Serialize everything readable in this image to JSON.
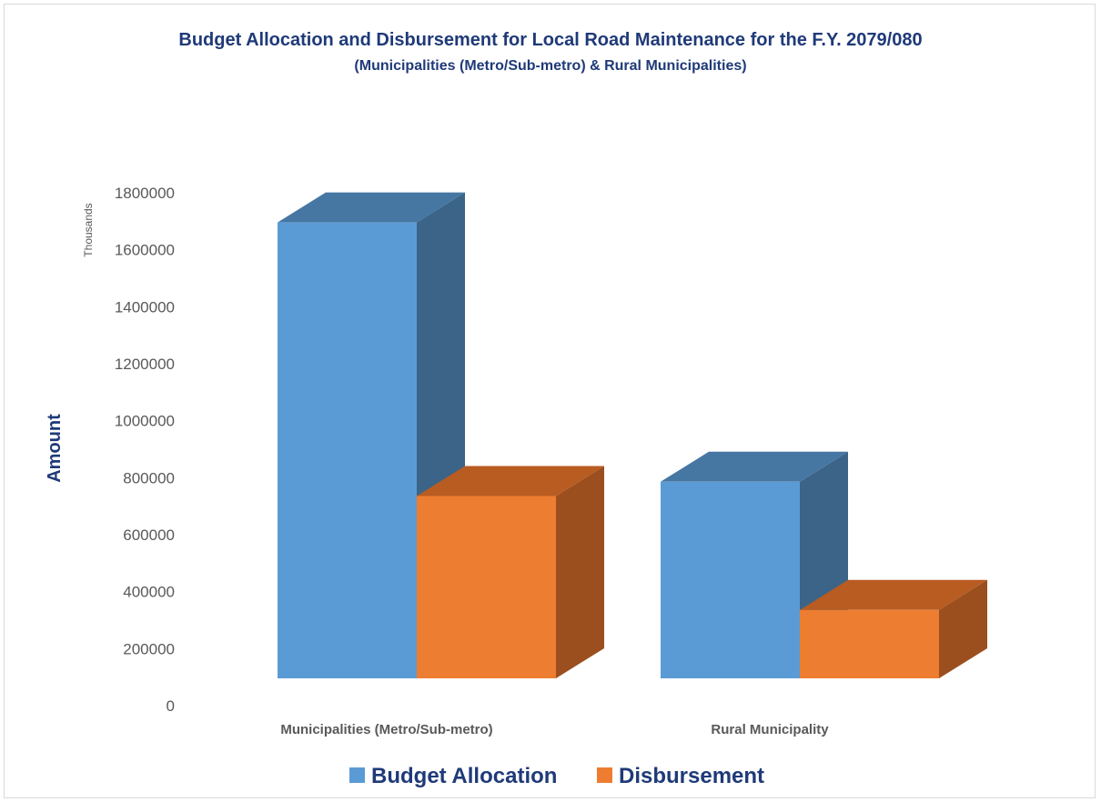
{
  "chart_data": {
    "type": "bar",
    "style": "3d-column",
    "title": "Budget Allocation and Disbursement for Local Road Maintenance for the F.Y. 2079/080",
    "subtitle": "(Municipalities (Metro/Sub-metro) & Rural Municipalities)",
    "ylabel": "Amount",
    "yunit": "Thousands",
    "ylim": [
      0,
      1800000
    ],
    "yticks": [
      "0",
      "200000",
      "400000",
      "600000",
      "800000",
      "1000000",
      "1200000",
      "1400000",
      "1600000",
      "1800000"
    ],
    "categories": [
      "Municipalities (Metro/Sub-metro)",
      "Rural Municipality"
    ],
    "series": [
      {
        "name": "Budget Allocation",
        "values": [
          1600000,
          690000
        ],
        "color": "#5b9bd5",
        "top_color": "#4677a3",
        "side_color": "#3b6488"
      },
      {
        "name": "Disbursement",
        "values": [
          640000,
          240000
        ],
        "color": "#ed7d31",
        "top_color": "#b85c22",
        "side_color": "#9b4f1e"
      }
    ],
    "grid": false,
    "legend": "bottom"
  }
}
